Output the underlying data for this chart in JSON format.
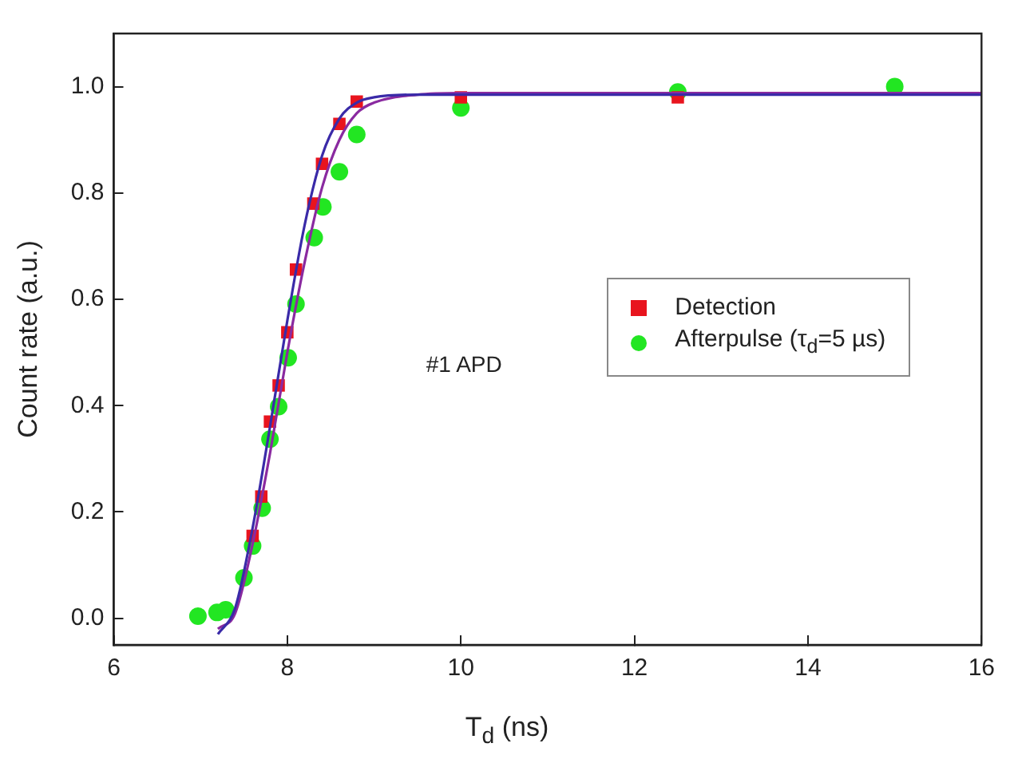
{
  "chart_data": {
    "type": "scatter",
    "xlabel": "T$_{d}$ (ns)",
    "ylabel": "Count rate (a.u.)",
    "xlim": [
      6,
      16
    ],
    "xticks": [
      6,
      8,
      10,
      12,
      14,
      16
    ],
    "ylim": [
      -0.05,
      1.1
    ],
    "yticks": [
      {
        "value": 0,
        "label": "0.0"
      },
      {
        "value": 0.2,
        "label": "0.2"
      },
      {
        "value": 0.4,
        "label": "0.4"
      },
      {
        "value": 0.6,
        "label": "0.6"
      },
      {
        "value": 0.8,
        "label": "0.8"
      },
      {
        "value": 1,
        "label": "1.0"
      }
    ],
    "grid": false,
    "legend": "right",
    "annotations": [
      "#1 APD"
    ],
    "series": [
      {
        "name": "Detection",
        "color": "#e8141e",
        "marker": "square",
        "x": [
          7.6,
          7.7,
          7.8,
          7.9,
          8.0,
          8.1,
          8.3,
          8.4,
          8.6,
          8.8,
          10,
          12.5
        ],
        "values": [
          0.155,
          0.229,
          0.37,
          0.438,
          0.538,
          0.656,
          0.78,
          0.855,
          0.93,
          0.972,
          0.98,
          0.98
        ]
      },
      {
        "name": "Afterpulse (τ$_{d}$=5 µs)",
        "color": "#22e622",
        "marker": "circle",
        "x": [
          6.97,
          7.19,
          7.29,
          7.5,
          7.6,
          7.71,
          7.8,
          7.9,
          8.01,
          8.1,
          8.31,
          8.41,
          8.6,
          8.8,
          10,
          12.5,
          15
        ],
        "values": [
          0.004,
          0.011,
          0.016,
          0.076,
          0.136,
          0.207,
          0.337,
          0.398,
          0.49,
          0.591,
          0.716,
          0.774,
          0.84,
          0.91,
          0.96,
          0.99,
          1.0
        ]
      },
      {
        "type": "line",
        "color": "#3a2aa8",
        "marker": "none",
        "x": [
          7.2,
          7.4,
          7.6,
          7.8,
          8.0,
          8.2,
          8.4,
          8.6,
          8.8,
          9.0,
          9.5,
          10,
          16
        ],
        "values": [
          -0.03,
          0.02,
          0.17,
          0.36,
          0.56,
          0.74,
          0.87,
          0.94,
          0.97,
          0.98,
          0.985,
          0.985,
          0.985
        ]
      },
      {
        "type": "line",
        "color": "#8a2aa0",
        "marker": "none",
        "x": [
          7.2,
          7.4,
          7.6,
          7.8,
          8.0,
          8.2,
          8.4,
          8.6,
          8.8,
          9.0,
          9.5,
          10,
          16
        ],
        "values": [
          -0.02,
          0.01,
          0.14,
          0.31,
          0.5,
          0.67,
          0.81,
          0.9,
          0.95,
          0.97,
          0.985,
          0.988,
          0.988
        ]
      }
    ]
  }
}
